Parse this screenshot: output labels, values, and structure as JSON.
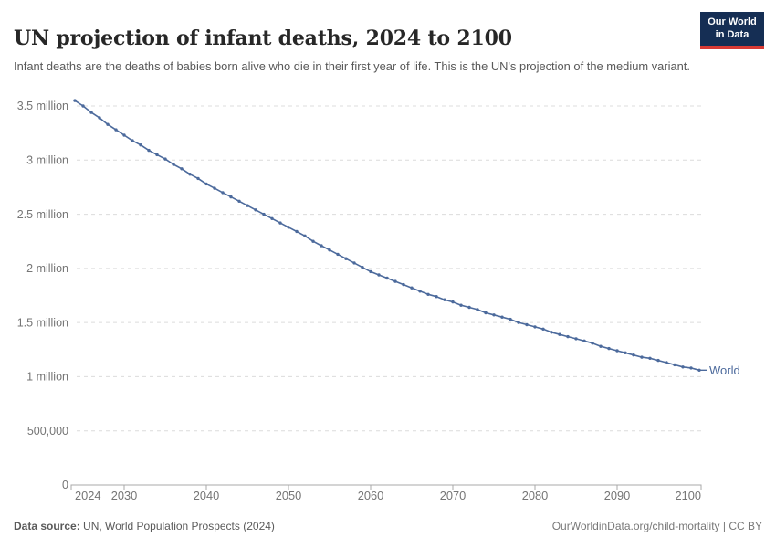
{
  "header": {
    "title": "UN projection of infant deaths, 2024 to 2100",
    "subtitle": "Infant deaths are the deaths of babies born alive who die in their first year of life. This is the UN's projection of the medium variant.",
    "logo": {
      "line1": "Our World",
      "line2": "in Data"
    }
  },
  "footer": {
    "source_label": "Data source:",
    "source_text": " UN, World Population Prospects (2024)",
    "right_text": "OurWorldinData.org/child-mortality | CC BY"
  },
  "colors": {
    "series_blue": "#4c6a9c",
    "grid": "#dcdcdc",
    "axis": "#a8a8a8",
    "tick_label": "#757575",
    "title": "#272727",
    "subtitle": "#595959",
    "logo_bg": "#152e54",
    "logo_red": "#d93a34"
  },
  "chart_data": {
    "type": "line",
    "title": "UN projection of infant deaths, 2024 to 2100",
    "xlabel": "",
    "ylabel": "",
    "grid": true,
    "legend_position": "end-of-line",
    "end_label": "World",
    "xlim": [
      2024,
      2100
    ],
    "ylim": [
      0,
      3.5
    ],
    "values_unit": "millions of infant deaths",
    "x_ticks": [
      2024,
      2030,
      2040,
      2050,
      2060,
      2070,
      2080,
      2090,
      2100
    ],
    "y_ticks": [
      {
        "value": 0,
        "label": "0"
      },
      {
        "value": 0.5,
        "label": "500,000"
      },
      {
        "value": 1,
        "label": "1 million"
      },
      {
        "value": 1.5,
        "label": "1.5 million"
      },
      {
        "value": 2,
        "label": "2 million"
      },
      {
        "value": 2.5,
        "label": "2.5 million"
      },
      {
        "value": 3,
        "label": "3 million"
      },
      {
        "value": 3.5,
        "label": "3.5 million"
      }
    ],
    "series": [
      {
        "name": "World",
        "color": "#4c6a9c",
        "x": [
          2024,
          2025,
          2026,
          2027,
          2028,
          2029,
          2030,
          2031,
          2032,
          2033,
          2034,
          2035,
          2036,
          2037,
          2038,
          2039,
          2040,
          2041,
          2042,
          2043,
          2044,
          2045,
          2046,
          2047,
          2048,
          2049,
          2050,
          2051,
          2052,
          2053,
          2054,
          2055,
          2056,
          2057,
          2058,
          2059,
          2060,
          2061,
          2062,
          2063,
          2064,
          2065,
          2066,
          2067,
          2068,
          2069,
          2070,
          2071,
          2072,
          2073,
          2074,
          2075,
          2076,
          2077,
          2078,
          2079,
          2080,
          2081,
          2082,
          2083,
          2084,
          2085,
          2086,
          2087,
          2088,
          2089,
          2090,
          2091,
          2092,
          2093,
          2094,
          2095,
          2096,
          2097,
          2098,
          2099,
          2100
        ],
        "values": [
          3.55,
          3.5,
          3.44,
          3.39,
          3.33,
          3.28,
          3.23,
          3.18,
          3.14,
          3.09,
          3.05,
          3.01,
          2.96,
          2.92,
          2.87,
          2.83,
          2.78,
          2.74,
          2.7,
          2.66,
          2.62,
          2.58,
          2.54,
          2.5,
          2.46,
          2.42,
          2.38,
          2.34,
          2.3,
          2.25,
          2.21,
          2.17,
          2.13,
          2.09,
          2.05,
          2.01,
          1.97,
          1.94,
          1.91,
          1.88,
          1.85,
          1.82,
          1.79,
          1.76,
          1.74,
          1.71,
          1.69,
          1.66,
          1.64,
          1.62,
          1.59,
          1.57,
          1.55,
          1.53,
          1.5,
          1.48,
          1.46,
          1.44,
          1.41,
          1.39,
          1.37,
          1.35,
          1.33,
          1.31,
          1.28,
          1.26,
          1.24,
          1.22,
          1.2,
          1.18,
          1.17,
          1.15,
          1.13,
          1.11,
          1.09,
          1.08,
          1.06
        ]
      }
    ]
  }
}
